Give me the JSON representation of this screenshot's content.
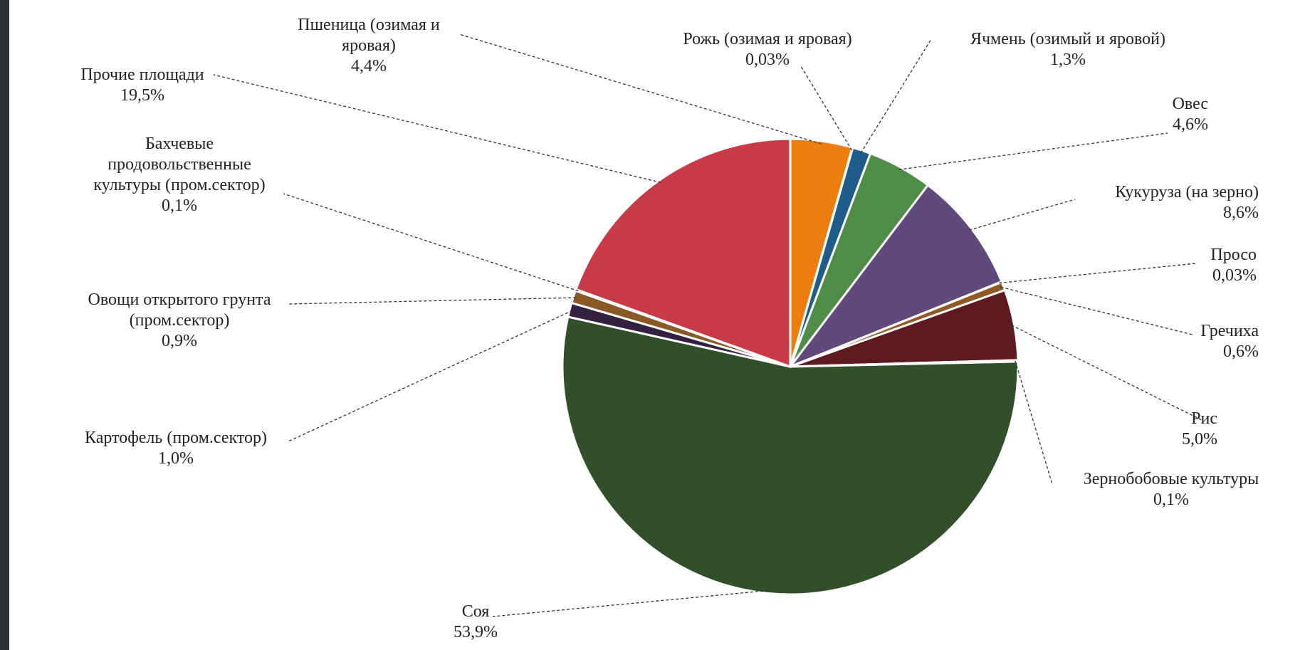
{
  "chart_data": {
    "type": "pie",
    "slices": [
      {
        "label": "Пшеница (озимая и яровая)",
        "value": 4.4,
        "value_label": "4,4%",
        "color": "#ed7d0e"
      },
      {
        "label": "Рожь (озимая и яровая)",
        "value": 0.03,
        "value_label": "0,03%",
        "color": "#4f81bd"
      },
      {
        "label": "Ячмень (озимый и яровой)",
        "value": 1.3,
        "value_label": "1,3%",
        "color": "#1f5c8a"
      },
      {
        "label": "Овес",
        "value": 4.6,
        "value_label": "4,6%",
        "color": "#4f8c48"
      },
      {
        "label": "Кукуруза (на зерно)",
        "value": 8.6,
        "value_label": "8,6%",
        "color": "#604a7b"
      },
      {
        "label": "Просо",
        "value": 0.03,
        "value_label": "0,03%",
        "color": "#9bbb59"
      },
      {
        "label": "Гречиха",
        "value": 0.6,
        "value_label": "0,6%",
        "color": "#8e5a26"
      },
      {
        "label": "Рис",
        "value": 5.0,
        "value_label": "5,0%",
        "color": "#5e1a1f"
      },
      {
        "label": "Зернобобовые культуры",
        "value": 0.1,
        "value_label": "0,1%",
        "color": "#4d6b2e"
      },
      {
        "label": "Соя",
        "value": 53.9,
        "value_label": "53,9%",
        "color": "#31502a"
      },
      {
        "label": "Картофель (пром.сектор)",
        "value": 1.0,
        "value_label": "1,0%",
        "color": "#33223f"
      },
      {
        "label": "Овощи открытого грунта (пром.сектор)",
        "value": 0.9,
        "value_label": "0,9%",
        "color": "#8a5a26"
      },
      {
        "label": "Бахчевые продовольственные культуры (пром.сектор)",
        "value": 0.1,
        "value_label": "0,1%",
        "color": "#c0504d"
      },
      {
        "label": "Прочие площади",
        "value": 19.5,
        "value_label": "19,5%",
        "color": "#c83a48"
      }
    ],
    "legend": "none",
    "start_angle_deg": 0,
    "direction": "clockwise"
  }
}
